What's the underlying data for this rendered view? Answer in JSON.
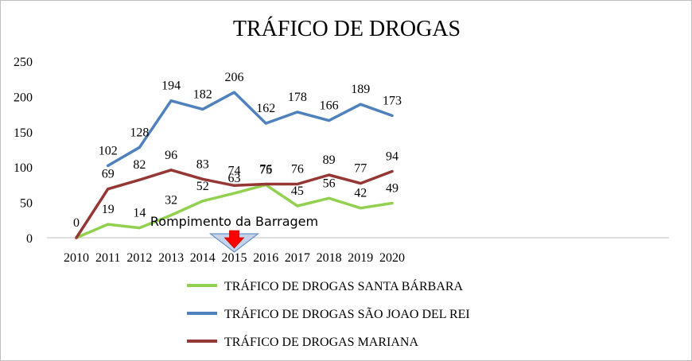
{
  "chart_data": {
    "type": "line",
    "title": "TRÁFICO DE DROGAS",
    "xlabel": "",
    "ylabel": "",
    "categories": [
      "2010",
      "2011",
      "2012",
      "2013",
      "2014",
      "2015",
      "2016",
      "2017",
      "2018",
      "2019",
      "2020"
    ],
    "ylim": [
      0,
      250
    ],
    "yticks": [
      "0",
      "50",
      "100",
      "150",
      "200",
      "250"
    ],
    "grid": false,
    "legend_position": "bottom",
    "series": [
      {
        "name": "TRÁFICO DE DROGAS SANTA BÁRBARA",
        "color": "#92d050",
        "values": [
          0,
          19,
          14,
          32,
          52,
          63,
          75,
          45,
          56,
          42,
          49
        ],
        "labels": [
          "",
          "19",
          "14",
          "32",
          "52",
          "63",
          "75",
          "45",
          "56",
          "42",
          "49"
        ]
      },
      {
        "name": "TRÁFICO DE DROGAS SÃO JOAO DEL REI",
        "color": "#4f81bd",
        "values": [
          null,
          102,
          128,
          194,
          182,
          206,
          162,
          178,
          166,
          189,
          173
        ],
        "labels": [
          "",
          "102",
          "128",
          "194",
          "182",
          "206",
          "162",
          "178",
          "166",
          "189",
          "173"
        ]
      },
      {
        "name": "TRÁFICO DE DROGAS MARIANA",
        "color": "#953735",
        "values": [
          0,
          69,
          82,
          96,
          83,
          74,
          76,
          76,
          89,
          77,
          94
        ],
        "labels": [
          "0",
          "69",
          "82",
          "96",
          "83",
          "74",
          "76",
          "76",
          "89",
          "77",
          "94"
        ]
      }
    ],
    "annotation": {
      "text": "Rompimento da Barragem",
      "category": "2015",
      "arrow_color": "#ff0000",
      "arrow_border": "#4f81bd"
    }
  }
}
